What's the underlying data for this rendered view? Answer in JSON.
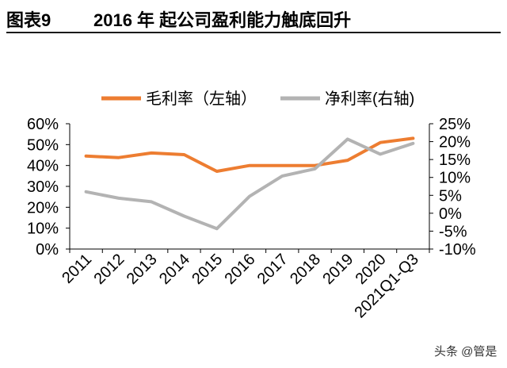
{
  "figure": {
    "number": "图表9",
    "title": "2016 年 起公司盈利能力触底回升"
  },
  "watermark": "头条 @管是",
  "chart_data": {
    "type": "line",
    "categories": [
      "2011",
      "2012",
      "2013",
      "2014",
      "2015",
      "2016",
      "2017",
      "2018",
      "2019",
      "2020",
      "2021Q1-Q3"
    ],
    "series": [
      {
        "name": "毛利率（左轴）",
        "axis": "left",
        "color": "#ed7d31",
        "values": [
          44.5,
          43.8,
          46.0,
          45.2,
          37.2,
          40.0,
          40.0,
          40.0,
          42.5,
          51.0,
          53.0
        ]
      },
      {
        "name": "净利率(右轴)",
        "axis": "right",
        "color": "#b3b3b3",
        "values": [
          6.0,
          4.2,
          3.2,
          -0.8,
          -4.3,
          4.7,
          10.4,
          12.4,
          20.7,
          16.5,
          19.5
        ]
      }
    ],
    "y_left": {
      "ylim": [
        0,
        60
      ],
      "ticks": [
        "0%",
        "10%",
        "20%",
        "30%",
        "40%",
        "50%",
        "60%"
      ]
    },
    "y_right": {
      "ylim": [
        -10,
        25
      ],
      "ticks": [
        "-10%",
        "-5%",
        "0%",
        "5%",
        "10%",
        "15%",
        "20%",
        "25%"
      ]
    },
    "legend": "top",
    "grid": false
  }
}
